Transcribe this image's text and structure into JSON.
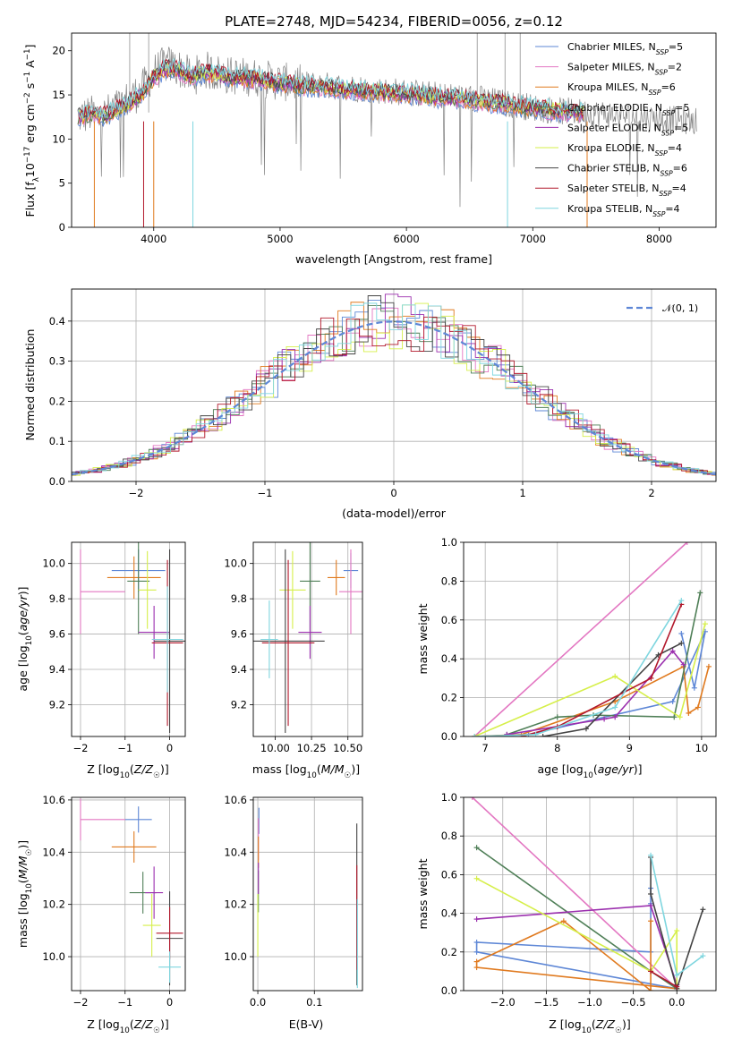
{
  "chart_data": [
    {
      "id": "spectrum",
      "type": "line",
      "title": "PLATE=2748, MJD=54234, FIBERID=0056, z=0.12",
      "xlabel": "wavelength [Angstrom, rest frame]",
      "ylabel": "Flux [f_λ 10^-17 erg cm^-2 s^-1 A^-1]",
      "xlim": [
        3350,
        8450
      ],
      "ylim": [
        0,
        22
      ],
      "xticks": [
        4000,
        5000,
        6000,
        7000,
        8000
      ],
      "yticks": [
        0,
        5,
        10,
        15,
        20
      ],
      "grid": false,
      "legend_position": "top-right",
      "data_trace": {
        "name": "",
        "color": "#808080",
        "x": [
          3400,
          3500,
          3600,
          3700,
          3800,
          3900,
          4000,
          4100,
          4200,
          4300,
          4400,
          4500,
          4600,
          4800,
          5000,
          5200,
          5400,
          5600,
          5800,
          6000,
          6200,
          6400,
          6600,
          6800,
          7000,
          7200,
          7400,
          7600,
          7800,
          8000,
          8200,
          8300
        ],
        "y": [
          12.5,
          12.8,
          12.7,
          13.5,
          14.5,
          15.5,
          17.5,
          18.5,
          18.0,
          17.0,
          17.8,
          17.5,
          17.2,
          17.0,
          16.5,
          16.2,
          16.0,
          15.8,
          15.5,
          15.3,
          15.0,
          14.8,
          14.5,
          14.0,
          13.6,
          13.2,
          13.0,
          12.8,
          12.5,
          12.3,
          12.1,
          12.0
        ]
      },
      "series": [
        {
          "name": "Chabrier MILES, N_SSP=5",
          "color": "#5e87d6"
        },
        {
          "name": "Salpeter MILES, N_SSP=2",
          "color": "#e377c2"
        },
        {
          "name": "Kroupa MILES, N_SSP=6",
          "color": "#e07a1f"
        },
        {
          "name": "Chabrier ELODIE, N_SSP=5",
          "color": "#4f7f57"
        },
        {
          "name": "Salpeter ELODIE, N_SSP=5",
          "color": "#9b2fae"
        },
        {
          "name": "Kroupa ELODIE, N_SSP=4",
          "color": "#d6ef4a"
        },
        {
          "name": "Chabrier STELIB, N_SSP=6",
          "color": "#444444"
        },
        {
          "name": "Salpeter STELIB, N_SSP=4",
          "color": "#b2182b"
        },
        {
          "name": "Kroupa STELIB, N_SSP=4",
          "color": "#7fd6df"
        }
      ],
      "model_curve": {
        "x": [
          3400,
          3500,
          3600,
          3700,
          3800,
          3900,
          4000,
          4100,
          4200,
          4300,
          4400,
          4500,
          4600,
          4800,
          5000,
          5200,
          5400,
          5600,
          5800,
          6000,
          6200,
          6400,
          6600,
          6800,
          7000,
          7200,
          7400
        ],
        "y": [
          12.5,
          12.8,
          12.6,
          13.2,
          14.0,
          15.0,
          17.0,
          18.0,
          17.8,
          17.0,
          17.5,
          17.3,
          17.0,
          16.8,
          16.3,
          16.0,
          15.8,
          15.5,
          15.3,
          15.1,
          14.8,
          14.6,
          14.3,
          13.9,
          13.5,
          13.2,
          13.0
        ]
      }
    },
    {
      "id": "residuals",
      "type": "line",
      "title": "",
      "xlabel": "(data-model)/error",
      "ylabel": "Normed distribution",
      "xlim": [
        -2.5,
        2.5
      ],
      "ylim": [
        0,
        0.48
      ],
      "xticks": [
        -2,
        -1,
        0,
        1,
        2
      ],
      "yticks": [
        0.0,
        0.1,
        0.2,
        0.3,
        0.4
      ],
      "grid": true,
      "legend_position": "top-right",
      "gaussian": {
        "name": "𝒩(0, 1)",
        "mean": 0,
        "sigma": 1,
        "color": "#5e87d6"
      },
      "hist_bin_width": 0.1
    },
    {
      "id": "age-vs-Z",
      "type": "errorbar",
      "xlabel": "Z [log10(Z/Z☉)]",
      "ylabel": "age  [log10(age/yr)]",
      "xlim": [
        -2.2,
        0.35
      ],
      "ylim": [
        9.02,
        10.12
      ],
      "xticks": [
        -2,
        -1,
        0
      ],
      "yticks": [
        9.2,
        9.4,
        9.6,
        9.8,
        10.0
      ],
      "grid": true,
      "points": [
        {
          "x": -0.7,
          "y": 9.96,
          "xerr": 0.6,
          "yerr": 0.12
        },
        {
          "x": -2.0,
          "y": 9.84,
          "xerr": 0.0,
          "xerr_plus": 1.0,
          "yerr": 0.24
        },
        {
          "x": -0.8,
          "y": 9.92,
          "xerr": 0.6,
          "yerr": 0.12
        },
        {
          "x": -0.7,
          "y": 9.9,
          "xerr": 0.25,
          "yerr": 0.3
        },
        {
          "x": -0.35,
          "y": 9.61,
          "xerr": 0.35,
          "yerr": 0.15
        },
        {
          "x": -0.5,
          "y": 9.85,
          "xerr": 0.2,
          "yerr": 0.22
        },
        {
          "x": 0.0,
          "y": 9.56,
          "xerr": 0.35,
          "yerr": 0.52
        },
        {
          "x": -0.05,
          "y": 9.55,
          "xerr": 0.35,
          "yerr": 0.47
        },
        {
          "x": -0.05,
          "y": 9.57,
          "xerr": 0.35,
          "yerr": 0.3
        }
      ]
    },
    {
      "id": "age-vs-mass",
      "type": "errorbar",
      "xlabel": "mass [log10(M/M☉)]",
      "ylabel": "",
      "xlim": [
        9.85,
        10.6
      ],
      "ylim": [
        9.02,
        10.12
      ],
      "xticks": [
        10.0,
        10.25,
        10.5
      ],
      "yticks": [
        9.2,
        9.4,
        9.6,
        9.8,
        10.0
      ],
      "grid": true,
      "points": [
        {
          "x": 10.52,
          "y": 9.96,
          "xerr": 0.05,
          "yerr": 0.1
        },
        {
          "x": 10.52,
          "y": 9.84,
          "xerr": 0.08,
          "yerr": 0.24
        },
        {
          "x": 10.42,
          "y": 9.92,
          "xerr": 0.06,
          "yerr": 0.1
        },
        {
          "x": 10.24,
          "y": 9.9,
          "xerr": 0.07,
          "yerr": 0.28
        },
        {
          "x": 10.24,
          "y": 9.61,
          "xerr": 0.08,
          "yerr": 0.15
        },
        {
          "x": 10.12,
          "y": 9.85,
          "xerr": 0.09,
          "yerr": 0.22
        },
        {
          "x": 10.07,
          "y": 9.56,
          "xerr": 0.27,
          "yerr": 0.52
        },
        {
          "x": 10.09,
          "y": 9.55,
          "xerr": 0.18,
          "yerr": 0.47
        },
        {
          "x": 9.96,
          "y": 9.57,
          "xerr": 0.06,
          "yerr": 0.22
        }
      ]
    },
    {
      "id": "weight-vs-age",
      "type": "line",
      "xlabel": "age  [log10(age/yr)]",
      "ylabel": "mass weight",
      "xlim": [
        6.7,
        10.2
      ],
      "ylim": [
        0,
        1
      ],
      "xticks": [
        7,
        8,
        9,
        10
      ],
      "yticks": [
        0.0,
        0.2,
        0.4,
        0.6,
        0.8,
        1.0
      ],
      "grid": true
    },
    {
      "id": "mass-vs-Z",
      "type": "errorbar",
      "xlabel": "Z [log10(Z/Z☉)]",
      "ylabel": "mass [log10(M/M☉)]",
      "xlim": [
        -2.2,
        0.35
      ],
      "ylim": [
        9.87,
        10.61
      ],
      "xticks": [
        -2,
        -1,
        0
      ],
      "yticks": [
        10.0,
        10.2,
        10.4,
        10.6
      ],
      "grid": true
    },
    {
      "id": "mass-vs-EBV",
      "type": "errorbar",
      "xlabel": "E(B-V)",
      "ylabel": "",
      "xlim": [
        -0.008,
        0.185
      ],
      "ylim": [
        9.87,
        10.61
      ],
      "xticks": [
        0.0,
        0.1
      ],
      "yticks": [
        10.0,
        10.2,
        10.4,
        10.6
      ],
      "grid": true
    },
    {
      "id": "weight-vs-Z",
      "type": "line",
      "xlabel": "Z [log10(Z/Z☉)]",
      "ylabel": "mass weight",
      "xlim": [
        -2.45,
        0.45
      ],
      "ylim": [
        0,
        1
      ],
      "xticks": [
        -2.0,
        -1.5,
        -1.0,
        -0.5,
        0.0
      ],
      "yticks": [
        0.0,
        0.2,
        0.4,
        0.6,
        0.8,
        1.0
      ],
      "grid": true
    }
  ]
}
